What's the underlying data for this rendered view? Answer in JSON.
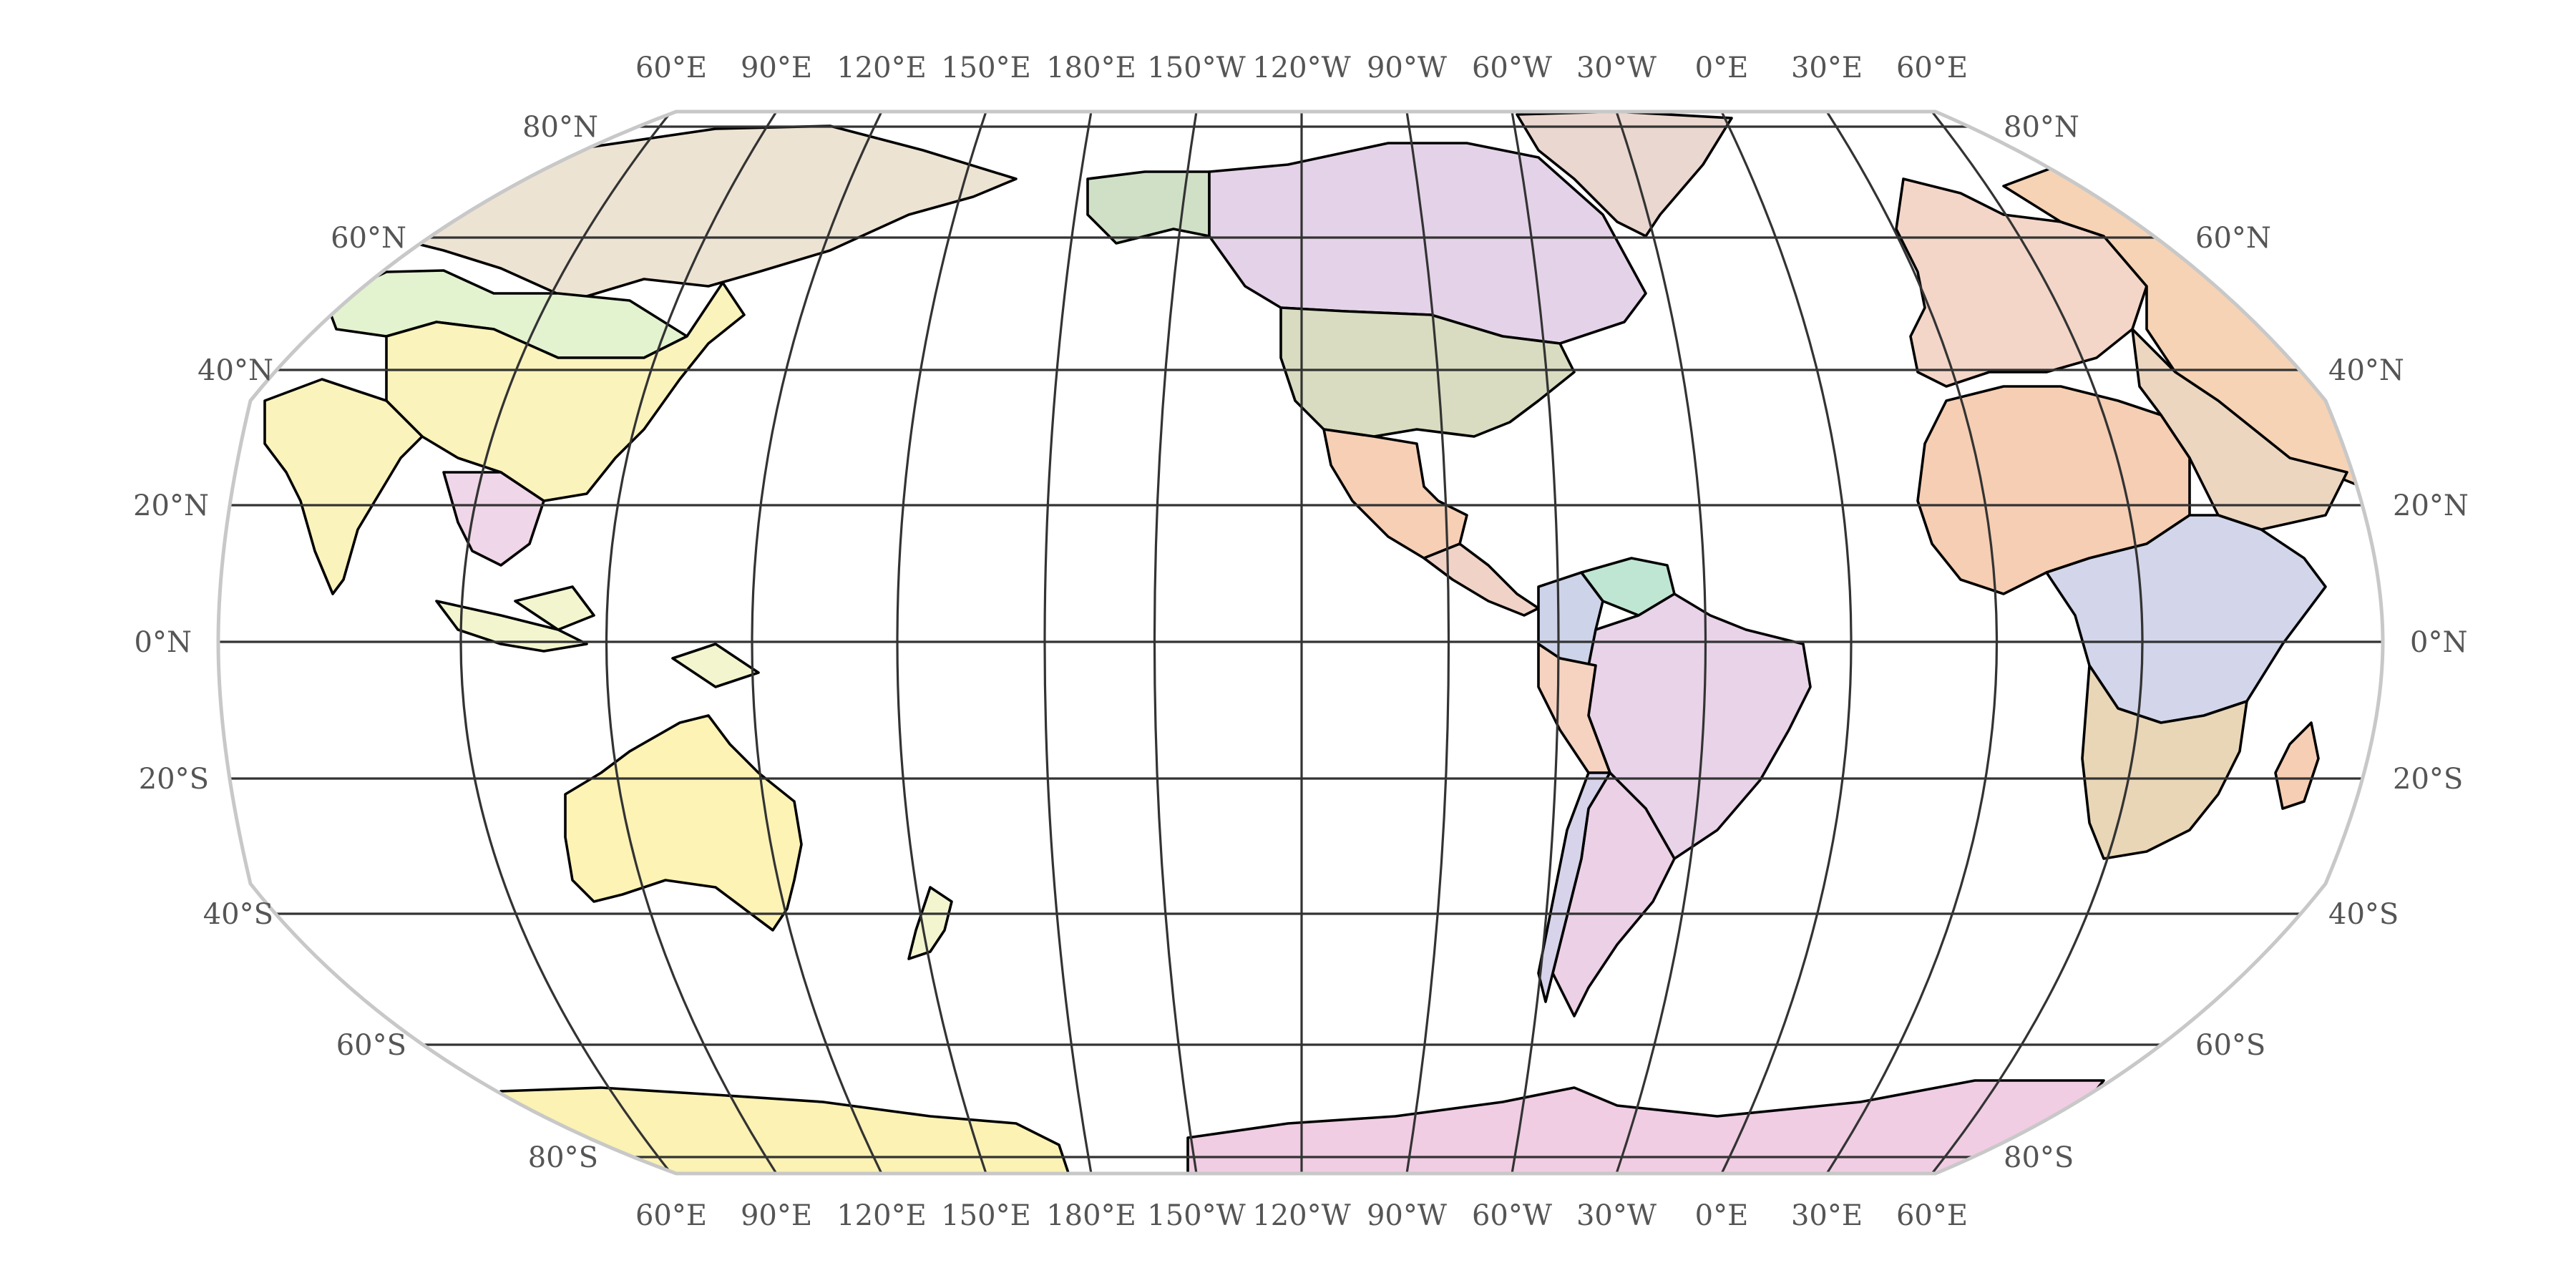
{
  "map": {
    "projection": "Robinson",
    "central_meridian": "120°W",
    "ocean_color": "#ffffff",
    "graticule_color": "#333333",
    "frame_color": "#c8c8c8",
    "label_color": "#555555",
    "meridian_labels": [
      "60°E",
      "90°E",
      "120°E",
      "150°E",
      "180°E",
      "150°W",
      "120°W",
      "90°W",
      "60°W",
      "30°W",
      "0°E",
      "30°E",
      "60°E"
    ],
    "parallel_labels_left": [
      "80°N",
      "60°N",
      "40°N",
      "20°N",
      "0°N",
      "20°S",
      "40°S",
      "60°S",
      "80°S"
    ],
    "parallel_labels_right": [
      "80°N",
      "60°N",
      "40°N",
      "20°N",
      "0°N",
      "20°S",
      "40°S",
      "60°S",
      "80°S"
    ],
    "landmasses": [
      {
        "id": "russia",
        "color": "#ede3d3"
      },
      {
        "id": "kazakhstan-mongolia",
        "color": "#e3f2cf"
      },
      {
        "id": "china",
        "color": "#faf3bb"
      },
      {
        "id": "india",
        "color": "#faf3bb"
      },
      {
        "id": "southeast-asia",
        "color": "#efd6e8"
      },
      {
        "id": "indonesia",
        "color": "#f3f5cf"
      },
      {
        "id": "australia",
        "color": "#fdf3b5"
      },
      {
        "id": "new-zealand",
        "color": "#f3f5cf"
      },
      {
        "id": "antarctica-east",
        "color": "#fbf2b3"
      },
      {
        "id": "antarctica-west",
        "color": "#f0cde3"
      },
      {
        "id": "alaska",
        "color": "#d0e0c6"
      },
      {
        "id": "canada",
        "color": "#e4d3e8"
      },
      {
        "id": "greenland",
        "color": "#ead7cf"
      },
      {
        "id": "usa",
        "color": "#d9dcc0"
      },
      {
        "id": "mexico",
        "color": "#f6cfb5"
      },
      {
        "id": "central-america",
        "color": "#f0d3c6"
      },
      {
        "id": "colombia",
        "color": "#cdd3e8"
      },
      {
        "id": "venezuela",
        "color": "#bfe6d3"
      },
      {
        "id": "brazil",
        "color": "#e8d3e8"
      },
      {
        "id": "peru",
        "color": "#f6d3c0"
      },
      {
        "id": "argentina",
        "color": "#ecd0e6"
      },
      {
        "id": "chile",
        "color": "#d6d3ea"
      },
      {
        "id": "europe",
        "color": "#f3d6c8"
      },
      {
        "id": "russia-east",
        "color": "#f6d3b5"
      },
      {
        "id": "middle-east",
        "color": "#ecd6c0"
      },
      {
        "id": "africa-north",
        "color": "#f6ceb3"
      },
      {
        "id": "africa-central",
        "color": "#d3d6ea"
      },
      {
        "id": "africa-south",
        "color": "#e9d6b7"
      },
      {
        "id": "madagascar",
        "color": "#f6ceb3"
      }
    ]
  }
}
